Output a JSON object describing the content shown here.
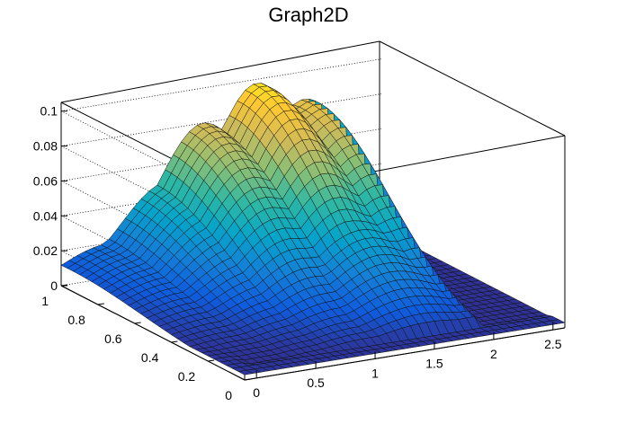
{
  "chart_data": {
    "type": "surface",
    "title": "Graph2D",
    "xlabel": "",
    "ylabel": "",
    "zlabel": "",
    "xlim": [
      -0.1,
      2.6
    ],
    "ylim": [
      0,
      1
    ],
    "zlim": [
      0,
      0.105
    ],
    "x_ticks": [
      "0",
      "0.5",
      "1",
      "1.5",
      "2",
      "2.5"
    ],
    "y_ticks": [
      "0",
      "0.2",
      "0.4",
      "0.6",
      "0.8",
      "1"
    ],
    "z_ticks": [
      "0",
      "0.02",
      "0.04",
      "0.06",
      "0.08",
      "0.1"
    ],
    "grid": true,
    "colormap": [
      "#352a87",
      "#0f5cdd",
      "#1481d6",
      "#06a4ca",
      "#2eb7a4",
      "#87bf77",
      "#d1bb59",
      "#fec832",
      "#f9fb0e"
    ],
    "surface_peaks": [
      {
        "x": 0.3,
        "y": 0.95,
        "z": 0.02
      },
      {
        "x": 0.8,
        "y": 1.0,
        "z": 0.05
      },
      {
        "x": 1.1,
        "y": 1.0,
        "z": 0.08
      },
      {
        "x": 1.55,
        "y": 0.98,
        "z": 0.098
      },
      {
        "x": 1.95,
        "y": 0.95,
        "z": 0.085
      }
    ]
  }
}
